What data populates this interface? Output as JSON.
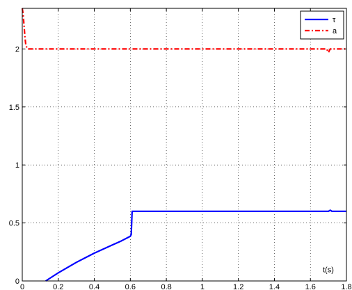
{
  "chart_data": {
    "type": "line",
    "xlabel": "t(s)",
    "ylabel": "",
    "title": "",
    "xlim": [
      0,
      1.8
    ],
    "ylim": [
      0,
      2.35
    ],
    "xticks": [
      0,
      0.2,
      0.4,
      0.6,
      0.8,
      1,
      1.2,
      1.4,
      1.6,
      1.8
    ],
    "xtick_labels": [
      "0",
      "0.2",
      "0.4",
      "0.6",
      "0.8",
      "1",
      "1.2",
      "1.4",
      "1.6",
      "1.8"
    ],
    "yticks": [
      0,
      0.5,
      1,
      1.5,
      2
    ],
    "ytick_labels": [
      "0",
      "0.5",
      "1",
      "1.5",
      "2"
    ],
    "grid": true,
    "legend_position": "top-right",
    "series": [
      {
        "name": "τ",
        "color": "#0000ff",
        "style": "solid",
        "x": [
          0.13,
          0.16,
          0.2,
          0.25,
          0.3,
          0.35,
          0.4,
          0.45,
          0.5,
          0.55,
          0.6,
          0.605,
          0.61,
          0.62,
          1.0,
          1.4,
          1.7,
          1.71,
          1.72,
          1.8
        ],
        "y": [
          0.0,
          0.03,
          0.07,
          0.115,
          0.16,
          0.2,
          0.24,
          0.275,
          0.31,
          0.345,
          0.385,
          0.4,
          0.6,
          0.6,
          0.6,
          0.6,
          0.6,
          0.61,
          0.6,
          0.6
        ]
      },
      {
        "name": "a",
        "color": "#ff0000",
        "style": "dashed",
        "x": [
          0.0,
          0.005,
          0.01,
          0.015,
          0.02,
          0.03,
          0.05,
          0.2,
          0.6,
          1.0,
          1.4,
          1.69,
          1.7,
          1.71,
          1.72,
          1.8
        ],
        "y": [
          2.35,
          2.3,
          2.2,
          2.1,
          2.03,
          2.0,
          2.0,
          2.0,
          2.0,
          2.0,
          2.0,
          2.0,
          1.97,
          2.0,
          2.0,
          2.0
        ]
      }
    ]
  }
}
